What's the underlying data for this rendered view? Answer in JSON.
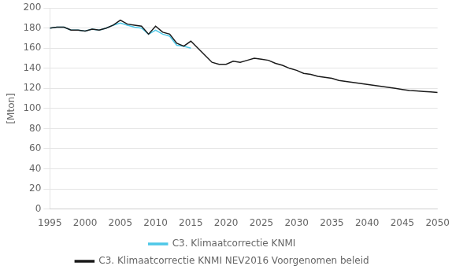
{
  "chart_data": {
    "type": "line",
    "ylabel": "[Mton]",
    "x": [
      1995,
      1996,
      1997,
      1998,
      1999,
      2000,
      2001,
      2002,
      2003,
      2004,
      2005,
      2006,
      2007,
      2008,
      2009,
      2010,
      2011,
      2012,
      2013,
      2014,
      2015,
      2016,
      2017,
      2018,
      2019,
      2020,
      2021,
      2022,
      2023,
      2024,
      2025,
      2026,
      2027,
      2028,
      2029,
      2030,
      2031,
      2032,
      2033,
      2034,
      2035,
      2036,
      2037,
      2038,
      2039,
      2040,
      2041,
      2042,
      2043,
      2044,
      2045,
      2046,
      2047,
      2048,
      2049,
      2050
    ],
    "series": [
      {
        "name": "C3. Klimaatcorrectie KNMI",
        "color": "#4DC8E8",
        "values": [
          180,
          181,
          181,
          178,
          178,
          177,
          179,
          178,
          180,
          183,
          185,
          183,
          181,
          180,
          174,
          178,
          174,
          172,
          163,
          162,
          160,
          null,
          null,
          null,
          null,
          null,
          null,
          null,
          null,
          null,
          null,
          null,
          null,
          null,
          null,
          null,
          null,
          null,
          null,
          null,
          null,
          null,
          null,
          null,
          null,
          null,
          null,
          null,
          null,
          null,
          null,
          null,
          null,
          null,
          null,
          null
        ]
      },
      {
        "name": "C3. Klimaatcorrectie KNMI NEV2016 Voorgenomen beleid",
        "color": "#1a1a1a",
        "values": [
          180,
          181,
          181,
          178,
          178,
          177,
          179,
          178,
          180,
          183,
          188,
          184,
          183,
          182,
          174,
          182,
          176,
          174,
          165,
          162,
          167,
          160,
          153,
          146,
          144,
          144,
          147,
          146,
          148,
          150,
          149,
          148,
          145,
          143,
          140,
          138,
          135,
          134,
          132,
          131,
          130,
          128,
          127,
          126,
          125,
          124,
          123,
          122,
          121,
          120,
          119,
          118,
          117.5,
          117,
          116.5,
          116
        ]
      }
    ],
    "xlim": [
      1995,
      2050
    ],
    "xticks": [
      1995,
      2000,
      2005,
      2010,
      2015,
      2020,
      2025,
      2030,
      2035,
      2040,
      2045,
      2050
    ],
    "ylim": [
      0,
      200
    ],
    "yticks": [
      0,
      20,
      40,
      60,
      80,
      100,
      120,
      140,
      160,
      180,
      200
    ],
    "grid": "y",
    "legend": "bottom"
  }
}
